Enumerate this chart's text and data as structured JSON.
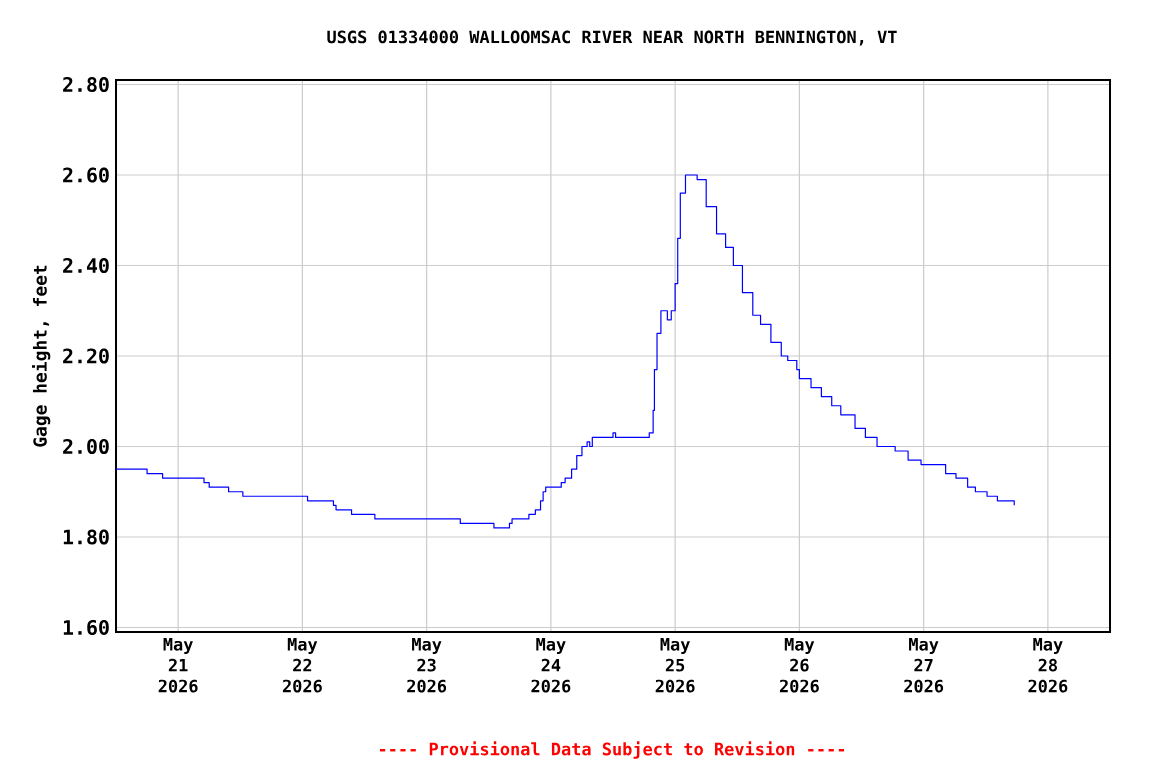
{
  "chart_data": {
    "type": "step",
    "title": "USGS 01334000 WALLOOMSAC RIVER NEAR NORTH BENNINGTON, VT",
    "ylabel": "Gage height, feet",
    "annotations": [
      "---- Provisional Data Subject to Revision ----"
    ],
    "xlim": [
      "2026-05-20T12:00",
      "2026-05-28T12:00"
    ],
    "ylim": [
      1.59,
      2.81
    ],
    "xticks": [
      {
        "value": "2026-05-21",
        "label": "May 21 2026"
      },
      {
        "value": "2026-05-22",
        "label": "May 22 2026"
      },
      {
        "value": "2026-05-23",
        "label": "May 23 2026"
      },
      {
        "value": "2026-05-24",
        "label": "May 24 2026"
      },
      {
        "value": "2026-05-25",
        "label": "May 25 2026"
      },
      {
        "value": "2026-05-26",
        "label": "May 26 2026"
      },
      {
        "value": "2026-05-27",
        "label": "May 27 2026"
      },
      {
        "value": "2026-05-28",
        "label": "May 28 2026"
      }
    ],
    "yticks": [
      {
        "value": 1.6,
        "label": "1.60"
      },
      {
        "value": 1.8,
        "label": "1.80"
      },
      {
        "value": 2.0,
        "label": "2.00"
      },
      {
        "value": 2.2,
        "label": "2.20"
      },
      {
        "value": 2.4,
        "label": "2.40"
      },
      {
        "value": 2.6,
        "label": "2.60"
      },
      {
        "value": 2.8,
        "label": "2.80"
      }
    ],
    "grid": true,
    "marker": "none",
    "line_style": "solid",
    "series": [
      {
        "color": "#0000ff",
        "x": [
          "2026-05-20T12:00",
          "2026-05-20T17:30",
          "2026-05-20T18:00",
          "2026-05-20T20:30",
          "2026-05-20T21:00",
          "2026-05-21T04:30",
          "2026-05-21T05:00",
          "2026-05-21T06:00",
          "2026-05-21T09:00",
          "2026-05-21T09:45",
          "2026-05-21T12:00",
          "2026-05-21T12:30",
          "2026-05-22T00:30",
          "2026-05-22T01:00",
          "2026-05-22T05:30",
          "2026-05-22T06:00",
          "2026-05-22T06:30",
          "2026-05-22T09:00",
          "2026-05-22T09:30",
          "2026-05-22T13:30",
          "2026-05-22T14:00",
          "2026-05-23T06:00",
          "2026-05-23T06:30",
          "2026-05-23T12:30",
          "2026-05-23T13:00",
          "2026-05-23T15:00",
          "2026-05-23T16:00",
          "2026-05-23T16:30",
          "2026-05-23T19:15",
          "2026-05-23T19:45",
          "2026-05-23T21:00",
          "2026-05-23T22:00",
          "2026-05-23T22:30",
          "2026-05-23T23:00",
          "2026-05-24T00:45",
          "2026-05-24T02:00",
          "2026-05-24T02:45",
          "2026-05-24T04:00",
          "2026-05-24T05:00",
          "2026-05-24T06:00",
          "2026-05-24T07:00",
          "2026-05-24T07:30",
          "2026-05-24T08:00",
          "2026-05-24T11:30",
          "2026-05-24T12:00",
          "2026-05-24T12:30",
          "2026-05-24T18:30",
          "2026-05-24T19:00",
          "2026-05-24T19:45",
          "2026-05-24T20:00",
          "2026-05-24T20:30",
          "2026-05-24T21:15",
          "2026-05-24T22:30",
          "2026-05-24T23:15",
          "2026-05-25T00:00",
          "2026-05-25T00:30",
          "2026-05-25T01:00",
          "2026-05-25T02:00",
          "2026-05-25T03:30",
          "2026-05-25T04:15",
          "2026-05-25T06:00",
          "2026-05-25T08:00",
          "2026-05-25T09:45",
          "2026-05-25T11:15",
          "2026-05-25T13:00",
          "2026-05-25T15:00",
          "2026-05-25T16:30",
          "2026-05-25T18:30",
          "2026-05-25T20:30",
          "2026-05-25T21:45",
          "2026-05-25T23:30",
          "2026-05-26T00:00",
          "2026-05-26T02:15",
          "2026-05-26T04:15",
          "2026-05-26T06:15",
          "2026-05-26T08:00",
          "2026-05-26T10:45",
          "2026-05-26T12:45",
          "2026-05-26T15:00",
          "2026-05-26T18:30",
          "2026-05-26T21:00",
          "2026-05-26T23:30",
          "2026-05-27T02:45",
          "2026-05-27T04:15",
          "2026-05-27T06:15",
          "2026-05-27T08:30",
          "2026-05-27T10:00",
          "2026-05-27T12:15",
          "2026-05-27T14:15",
          "2026-05-27T17:30"
        ],
        "values": [
          1.95,
          1.95,
          1.94,
          1.94,
          1.93,
          1.93,
          1.92,
          1.91,
          1.91,
          1.9,
          1.9,
          1.89,
          1.89,
          1.88,
          1.88,
          1.87,
          1.86,
          1.86,
          1.85,
          1.85,
          1.84,
          1.84,
          1.83,
          1.83,
          1.82,
          1.82,
          1.83,
          1.84,
          1.84,
          1.85,
          1.86,
          1.88,
          1.9,
          1.91,
          1.91,
          1.92,
          1.93,
          1.95,
          1.98,
          2.0,
          2.01,
          2.0,
          2.02,
          2.02,
          2.03,
          2.02,
          2.02,
          2.03,
          2.08,
          2.17,
          2.25,
          2.3,
          2.28,
          2.3,
          2.36,
          2.46,
          2.56,
          2.6,
          2.6,
          2.59,
          2.53,
          2.47,
          2.44,
          2.4,
          2.34,
          2.29,
          2.27,
          2.23,
          2.2,
          2.19,
          2.17,
          2.15,
          2.13,
          2.11,
          2.09,
          2.07,
          2.04,
          2.02,
          2.0,
          1.99,
          1.97,
          1.96,
          1.96,
          1.94,
          1.93,
          1.91,
          1.9,
          1.89,
          1.88,
          1.87
        ]
      }
    ]
  }
}
